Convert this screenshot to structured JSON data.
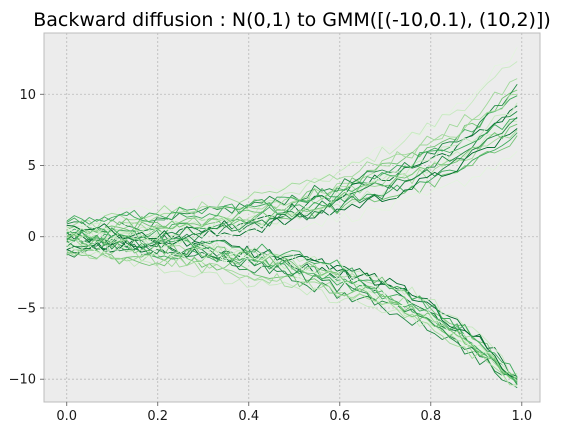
{
  "chart_data": {
    "type": "line",
    "title": "Backward diffusion : N(0,1) to GMM([(-10,0.1), (10,2)])",
    "xlabel": "",
    "ylabel": "",
    "xlim": [
      -0.05,
      1.04
    ],
    "ylim": [
      -11.6,
      14.3
    ],
    "xticks": [
      0.0,
      0.2,
      0.4,
      0.6,
      0.8,
      1.0
    ],
    "xtick_labels": [
      "0.0",
      "0.2",
      "0.4",
      "0.6",
      "0.8",
      "1.0"
    ],
    "yticks": [
      -10,
      -5,
      0,
      5,
      10
    ],
    "ytick_labels": [
      "−10",
      "−5",
      "0",
      "5",
      "10"
    ],
    "grid": true,
    "legend": "none",
    "colors": {
      "plot_background": "#ececec",
      "grid": "#b8b8b8",
      "spine": "#bcbcbc",
      "series_palette": [
        "#e3f4de",
        "#c7e9c0",
        "#a1d99b",
        "#74c476",
        "#41ab5d",
        "#238b45",
        "#006d2c"
      ]
    },
    "series_count": 40,
    "x": [
      0.0,
      0.1,
      0.2,
      0.3,
      0.4,
      0.5,
      0.6,
      0.7,
      0.8,
      0.9,
      0.99
    ],
    "series": [
      {
        "values": [
          1.3,
          1.6,
          2.1,
          2.6,
          3.0,
          3.6,
          4.7,
          6.2,
          7.8,
          10.2,
          13.3
        ]
      },
      {
        "values": [
          -0.4,
          0.1,
          0.5,
          1.0,
          1.9,
          3.0,
          4.5,
          6.0,
          7.8,
          9.8,
          12.3
        ]
      },
      {
        "values": [
          0.1,
          0.4,
          0.8,
          1.3,
          1.7,
          2.5,
          3.7,
          5.2,
          6.8,
          8.6,
          11.1
        ]
      },
      {
        "values": [
          0.4,
          0.2,
          0.6,
          0.9,
          1.5,
          2.5,
          3.4,
          4.8,
          6.1,
          7.9,
          10.3
        ]
      },
      {
        "values": [
          -0.2,
          -0.2,
          0.4,
          0.9,
          1.3,
          2.2,
          3.2,
          4.4,
          5.8,
          7.6,
          9.9
        ]
      },
      {
        "values": [
          0.9,
          0.7,
          0.9,
          1.6,
          2.2,
          2.8,
          3.6,
          4.5,
          5.7,
          7.7,
          10.7
        ]
      },
      {
        "values": [
          -0.9,
          -0.5,
          0.0,
          0.6,
          1.2,
          2.0,
          3.0,
          4.2,
          5.4,
          7.0,
          9.2
        ]
      },
      {
        "values": [
          0.2,
          0.8,
          1.2,
          1.4,
          1.5,
          1.9,
          2.8,
          4.0,
          5.1,
          6.6,
          8.5
        ]
      },
      {
        "values": [
          -0.6,
          -0.1,
          0.2,
          0.3,
          0.7,
          1.3,
          2.3,
          3.3,
          4.9,
          6.3,
          8.1
        ]
      },
      {
        "values": [
          0.6,
          1.2,
          1.8,
          2.0,
          2.2,
          2.5,
          3.1,
          3.7,
          4.5,
          5.8,
          7.5
        ]
      },
      {
        "values": [
          -0.3,
          0.4,
          0.7,
          1.0,
          1.1,
          1.5,
          2.0,
          2.8,
          3.6,
          5.1,
          7.1
        ]
      },
      {
        "values": [
          1.0,
          1.3,
          1.6,
          1.7,
          1.9,
          2.2,
          2.6,
          3.2,
          4.1,
          5.4,
          7.3
        ]
      },
      {
        "values": [
          -1.2,
          -0.8,
          -0.3,
          0.2,
          0.8,
          1.6,
          2.6,
          3.7,
          5.0,
          6.8,
          8.8
        ]
      },
      {
        "values": [
          0.3,
          -0.2,
          -0.4,
          0.0,
          0.5,
          1.2,
          1.9,
          2.8,
          4.0,
          5.6,
          7.6
        ]
      },
      {
        "values": [
          -0.5,
          0.0,
          0.3,
          0.4,
          0.5,
          0.8,
          1.3,
          2.0,
          2.9,
          4.3,
          6.0
        ]
      },
      {
        "values": [
          0.7,
          0.5,
          0.2,
          0.6,
          1.0,
          1.7,
          2.8,
          4.1,
          5.5,
          7.2,
          9.4
        ]
      },
      {
        "values": [
          -0.1,
          0.6,
          1.3,
          2.1,
          2.8,
          3.5,
          4.3,
          5.3,
          6.4,
          8.0,
          10.0
        ]
      },
      {
        "values": [
          0.5,
          0.9,
          1.1,
          1.0,
          1.3,
          1.8,
          2.6,
          3.7,
          4.8,
          6.2,
          7.9
        ]
      },
      {
        "values": [
          1.1,
          1.4,
          1.2,
          1.6,
          2.1,
          2.6,
          3.2,
          4.3,
          5.7,
          7.1,
          8.3
        ]
      },
      {
        "values": [
          -0.7,
          -0.3,
          0.1,
          0.5,
          0.9,
          1.4,
          2.2,
          3.1,
          4.4,
          6.0,
          8.4
        ]
      },
      {
        "values": [
          0.0,
          -0.3,
          -0.7,
          -1.2,
          -1.4,
          -1.8,
          -2.6,
          -3.6,
          -5.3,
          -7.5,
          -10.2
        ]
      },
      {
        "values": [
          -0.8,
          -1.0,
          -1.4,
          -1.6,
          -2.0,
          -2.7,
          -3.4,
          -4.6,
          -6.2,
          -8.2,
          -10.4
        ]
      },
      {
        "values": [
          0.4,
          0.0,
          -0.2,
          -0.7,
          -1.3,
          -2.2,
          -3.2,
          -4.5,
          -5.9,
          -7.8,
          -10.0
        ]
      },
      {
        "values": [
          -0.4,
          -0.9,
          -1.5,
          -2.0,
          -2.6,
          -3.1,
          -3.8,
          -4.7,
          -6.1,
          -8.0,
          -10.1
        ]
      },
      {
        "values": [
          -1.3,
          -1.1,
          -1.3,
          -1.6,
          -1.5,
          -1.7,
          -2.4,
          -3.3,
          -4.8,
          -7.1,
          -9.9
        ]
      },
      {
        "values": [
          0.2,
          -0.4,
          -1.1,
          -1.3,
          -1.6,
          -2.1,
          -2.9,
          -4.0,
          -5.5,
          -7.6,
          -10.3
        ]
      },
      {
        "values": [
          -0.2,
          -0.6,
          -0.9,
          -1.4,
          -2.1,
          -3.0,
          -4.0,
          -5.0,
          -6.4,
          -8.4,
          -10.4
        ]
      },
      {
        "values": [
          -0.9,
          -0.7,
          -0.6,
          -0.9,
          -1.0,
          -1.5,
          -2.2,
          -3.2,
          -4.7,
          -6.9,
          -9.8
        ]
      },
      {
        "values": [
          0.6,
          0.2,
          -0.5,
          -1.1,
          -1.8,
          -2.5,
          -3.3,
          -4.4,
          -5.7,
          -7.7,
          -10.1
        ]
      },
      {
        "values": [
          -0.6,
          -1.3,
          -2.0,
          -2.8,
          -3.3,
          -3.7,
          -4.3,
          -5.2,
          -6.3,
          -7.9,
          -9.6
        ]
      },
      {
        "values": [
          0.1,
          -0.1,
          -0.5,
          -0.9,
          -1.2,
          -1.9,
          -2.7,
          -3.9,
          -5.4,
          -7.3,
          -9.9
        ]
      },
      {
        "values": [
          -1.1,
          -1.5,
          -1.7,
          -1.9,
          -2.4,
          -3.0,
          -3.7,
          -4.3,
          -5.8,
          -7.7,
          -10.2
        ]
      },
      {
        "values": [
          0.3,
          0.3,
          -0.3,
          -0.8,
          -1.7,
          -2.4,
          -3.1,
          -4.1,
          -5.2,
          -7.4,
          -10.3
        ]
      },
      {
        "values": [
          -0.3,
          -0.5,
          -1.0,
          -1.2,
          -1.9,
          -2.6,
          -3.5,
          -4.8,
          -6.0,
          -8.1,
          -10.6
        ]
      },
      {
        "values": [
          0.8,
          0.4,
          0.1,
          -0.4,
          -0.9,
          -1.6,
          -2.3,
          -3.4,
          -4.9,
          -7.2,
          -10.0
        ]
      },
      {
        "values": [
          -0.5,
          -0.8,
          -1.2,
          -1.4,
          -1.3,
          -1.9,
          -2.8,
          -4.2,
          -5.6,
          -7.9,
          -10.5
        ]
      },
      {
        "values": [
          0.5,
          0.1,
          -0.3,
          -0.6,
          -1.1,
          -1.5,
          -2.0,
          -3.0,
          -4.5,
          -6.8,
          -9.7
        ]
      },
      {
        "values": [
          -1.0,
          -1.2,
          -1.6,
          -2.2,
          -2.7,
          -3.2,
          -3.9,
          -4.9,
          -6.5,
          -8.3,
          -10.4
        ]
      },
      {
        "values": [
          0.0,
          -0.6,
          -0.8,
          -1.0,
          -1.4,
          -2.0,
          -3.0,
          -4.3,
          -5.9,
          -8.0,
          -10.1
        ]
      },
      {
        "values": [
          -0.1,
          0.2,
          0.0,
          -0.5,
          -0.8,
          -1.3,
          -2.1,
          -3.5,
          -5.0,
          -7.0,
          -9.9
        ]
      }
    ]
  }
}
